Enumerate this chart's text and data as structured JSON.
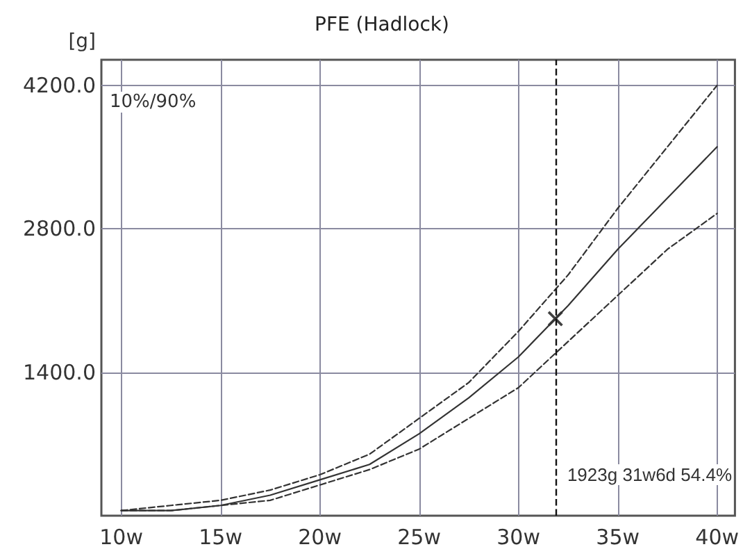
{
  "chart_data": {
    "type": "line",
    "title": "PFE (Hadlock)",
    "ylabel": "[g]",
    "annotations": [
      "10%/90%",
      "1923g 31w6d 54.4%"
    ],
    "xlim": [
      9,
      40.9
    ],
    "ylim": [
      0,
      4450
    ],
    "xticks": [
      {
        "value": 10,
        "label": "10w"
      },
      {
        "value": 15,
        "label": "15w"
      },
      {
        "value": 20,
        "label": "20w"
      },
      {
        "value": 25,
        "label": "25w"
      },
      {
        "value": 30,
        "label": "30w"
      },
      {
        "value": 35,
        "label": "35w"
      },
      {
        "value": 40,
        "label": "40w"
      }
    ],
    "yticks": [
      {
        "value": 1400,
        "label": "1400.0"
      },
      {
        "value": 2800,
        "label": "2800.0"
      },
      {
        "value": 4200,
        "label": "4200.0"
      }
    ],
    "x": [
      10,
      12.5,
      15,
      17.5,
      20,
      22.5,
      25,
      27.5,
      30,
      32.5,
      35,
      37.5,
      40
    ],
    "series": [
      {
        "color": "#333333",
        "line_style": "solid",
        "values": [
          50,
          50,
          100,
          200,
          350,
          500,
          800,
          1150,
          1550,
          2050,
          2600,
          3100,
          3600
        ]
      },
      {
        "color": "#333333",
        "line_style": "dashed",
        "values": [
          50,
          50,
          100,
          150,
          300,
          450,
          650,
          950,
          1250,
          1700,
          2150,
          2600,
          2950
        ]
      },
      {
        "color": "#333333",
        "line_style": "dashed",
        "values": [
          50,
          100,
          150,
          250,
          400,
          600,
          950,
          1300,
          1800,
          2350,
          3000,
          3600,
          4200
        ]
      },
      {
        "type": "scatter",
        "color": "#111111",
        "marker": "cross",
        "x": [
          31.857
        ],
        "values": [
          1923
        ]
      }
    ],
    "ref_lines": [
      {
        "axis": "x",
        "value": 31.857,
        "color": "#111111",
        "line_style": "dashed"
      }
    ],
    "grid": true,
    "marker": "none"
  }
}
